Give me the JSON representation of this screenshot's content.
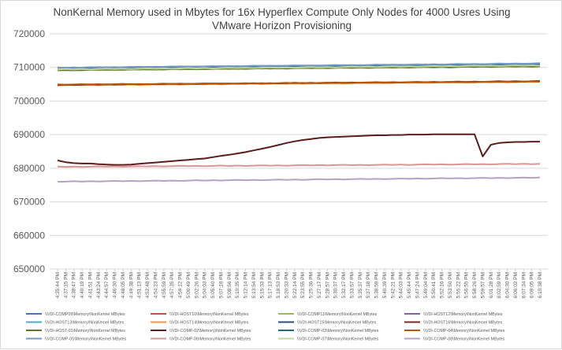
{
  "chart_data": {
    "type": "line",
    "title_lines": [
      "NonKernal Memory used in Mbytes for 16x Hyperflex Compute Only Nodes for 4000 Usres Using",
      "VMware Horizon Provisioning"
    ],
    "xlabel": "",
    "ylabel": "",
    "ylim": [
      650000,
      720000
    ],
    "yticks": [
      "650000",
      "660000",
      "670000",
      "680000",
      "690000",
      "700000",
      "710000",
      "720000"
    ],
    "grid": true,
    "legend_position": "bottom",
    "x": [
      "4:35:44 PM",
      "4:37:15 PM",
      "4:38:47 PM",
      "4:40:19 PM",
      "4:41:51 PM",
      "4:43:24 PM",
      "4:44:57 PM",
      "4:46:30 PM",
      "4:48:05 PM",
      "4:49:38 PM",
      "4:51:13 PM",
      "4:52:48 PM",
      "4:54:23 PM",
      "4:55:59 PM",
      "4:57:35 PM",
      "4:59:12 PM",
      "5:00:49 PM",
      "5:02:26 PM",
      "5:04:03 PM",
      "5:05:40 PM",
      "5:07:18 PM",
      "5:08:56 PM",
      "5:10:35 PM",
      "5:12:14 PM",
      "5:13:54 PM",
      "5:15:33 PM",
      "5:17:13 PM",
      "5:18:53 PM",
      "5:20:33 PM",
      "5:22:14 PM",
      "5:23:55 PM",
      "5:25:36 PM",
      "5:27:17 PM",
      "5:28:57 PM",
      "5:30:37 PM",
      "5:32:17 PM",
      "5:33:57 PM",
      "5:35:37 PM",
      "5:37:18 PM",
      "5:38:59 PM",
      "5:40:39 PM",
      "5:42:21 PM",
      "5:44:03 PM",
      "5:45:44 PM",
      "5:47:24 PM",
      "5:49:04 PM",
      "5:50:41 PM",
      "5:52:16 PM",
      "5:53:50 PM",
      "5:55:22 PM",
      "5:56:55 PM",
      "5:58:26 PM",
      "5:59:57 PM",
      "6:01:28 PM",
      "6:02:59 PM",
      "6:04:30 PM",
      "6:06:02 PM",
      "6:07:34 PM",
      "6:09:05 PM",
      "6:10:38 PM"
    ],
    "series": [
      {
        "name": "\\\\VDI-COMP09\\Memory\\NonKernel MBytes",
        "color": "#4472c4",
        "start": 709500,
        "end": 711000
      },
      {
        "name": "\\\\VDI-HOST10\\Memory\\NonKernel MBytes",
        "color": "#c0504d",
        "start": 709300,
        "end": 710700
      },
      {
        "name": "\\\\VDI-COMP11\\Memory\\NonKernel MBytes",
        "color": "#9bbb59",
        "start": 709100,
        "end": 710500
      },
      {
        "name": "\\\\VDI-HOST12\\Memory\\NonKernel MBytes",
        "color": "#8064a2",
        "start": 709900,
        "end": 711100
      },
      {
        "name": "\\\\VDI-HOST13\\Memory\\NonKernel MBytes",
        "color": "#4bacc6",
        "start": 709700,
        "end": 710900
      },
      {
        "name": "\\\\VDI-HOST14\\Memory\\NonKernel MBytes",
        "color": "#f79646",
        "start": 704700,
        "end": 705700
      },
      {
        "name": "\\\\VDI-HOST15\\Memory\\NonKernel MBytes",
        "color": "#2c4d75",
        "start": 709800,
        "end": 711000
      },
      {
        "name": "\\\\VDI-HOST16\\Memory\\NonKernel MBytes",
        "color": "#772c2a",
        "start": 704800,
        "end": 705900
      },
      {
        "name": "\\\\VDI-HOST-01\\Memory\\NonKernel MBytes",
        "color": "#5f7530",
        "start": 709200,
        "end": 710300
      },
      {
        "name": "\\\\VDI-COMP-02\\Memory\\NonKernel MBytes",
        "color": "#5e1b1b",
        "profile": "rising",
        "values": [
          682300,
          681800,
          681500,
          681400,
          681400,
          681200,
          681100,
          681000,
          681000,
          681100,
          681300,
          681500,
          681700,
          681900,
          682100,
          682300,
          682500,
          682700,
          682900,
          683300,
          683700,
          684000,
          684400,
          684800,
          685300,
          685800,
          686300,
          686900,
          687500,
          688000,
          688400,
          688700,
          689000,
          689200,
          689300,
          689400,
          689500,
          689600,
          689700,
          689800,
          689800,
          689900,
          689900,
          690000,
          690000,
          690000,
          690100,
          690100,
          690100,
          690100,
          690100,
          690100,
          683500,
          687000,
          687500,
          687700,
          687800,
          687800,
          687900,
          687900
        ]
      },
      {
        "name": "\\\\VDI-COMP-03\\Memory\\NonKernel MBytes",
        "color": "#276a7c",
        "start": 709600,
        "end": 710800
      },
      {
        "name": "\\\\VDI-COMP-04\\Memory\\NonKernel MBytes",
        "color": "#b65708",
        "start": 704900,
        "end": 705800
      },
      {
        "name": "\\\\VDI-COMP-05\\Memory\\NonKernel MBytes",
        "color": "#729aca",
        "start": 709900,
        "end": 711200
      },
      {
        "name": "\\\\VDI-COMP-06\\Memory\\NonKernel MBytes",
        "color": "#d99694",
        "start": 680400,
        "end": 681300
      },
      {
        "name": "\\\\VDI-COMP-07\\Memory\\NonKernel MBytes",
        "color": "#c3d69b",
        "start": 709400,
        "end": 710600
      },
      {
        "name": "\\\\VDI-COMP-08\\Memory\\NonKernel MBytes",
        "color": "#b3a2c7",
        "start": 676000,
        "end": 677200
      }
    ]
  }
}
